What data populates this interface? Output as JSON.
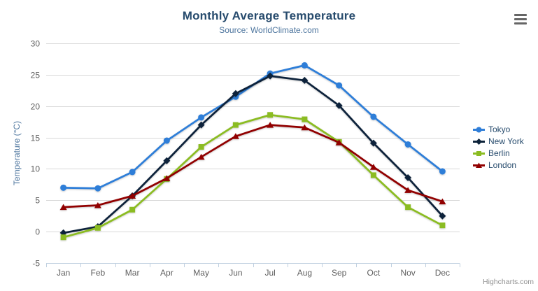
{
  "chart_data": {
    "type": "line",
    "title": "Monthly Average Temperature",
    "subtitle": "Source: WorldClimate.com",
    "credit": "Highcharts.com",
    "xlabel": "",
    "ylabel": "Temperature (°C)",
    "ylim": [
      -5,
      30
    ],
    "ytick_step": 5,
    "grid": true,
    "legend_position": "right",
    "categories": [
      "Jan",
      "Feb",
      "Mar",
      "Apr",
      "May",
      "Jun",
      "Jul",
      "Aug",
      "Sep",
      "Oct",
      "Nov",
      "Dec"
    ],
    "series": [
      {
        "name": "Tokyo",
        "color": "#2f7ed8",
        "marker": "circle",
        "values": [
          7.0,
          6.9,
          9.5,
          14.5,
          18.2,
          21.5,
          25.2,
          26.5,
          23.3,
          18.3,
          13.9,
          9.6
        ]
      },
      {
        "name": "New York",
        "color": "#0d233a",
        "marker": "diamond",
        "values": [
          -0.2,
          0.8,
          5.7,
          11.3,
          17.0,
          22.0,
          24.8,
          24.1,
          20.1,
          14.1,
          8.6,
          2.5
        ]
      },
      {
        "name": "Berlin",
        "color": "#8bbc21",
        "marker": "square",
        "values": [
          -0.9,
          0.6,
          3.5,
          8.4,
          13.5,
          17.0,
          18.6,
          17.9,
          14.3,
          9.0,
          3.9,
          1.0
        ]
      },
      {
        "name": "London",
        "color": "#910000",
        "marker": "triangle",
        "values": [
          3.9,
          4.2,
          5.7,
          8.5,
          11.9,
          15.2,
          17.0,
          16.6,
          14.2,
          10.3,
          6.6,
          4.8
        ]
      }
    ]
  },
  "theme": {
    "background": "#ffffff",
    "grid_line": "#d8d8d8",
    "axis_line": "#c0d0e0",
    "axis_label_color": "#606060",
    "title_color": "#274b6d",
    "subtitle_color": "#4d759e",
    "y_title_color": "#4d759e",
    "legend_text_color": "#274b6d",
    "credit_color": "#909090",
    "menu_icon_color": "#666666"
  }
}
